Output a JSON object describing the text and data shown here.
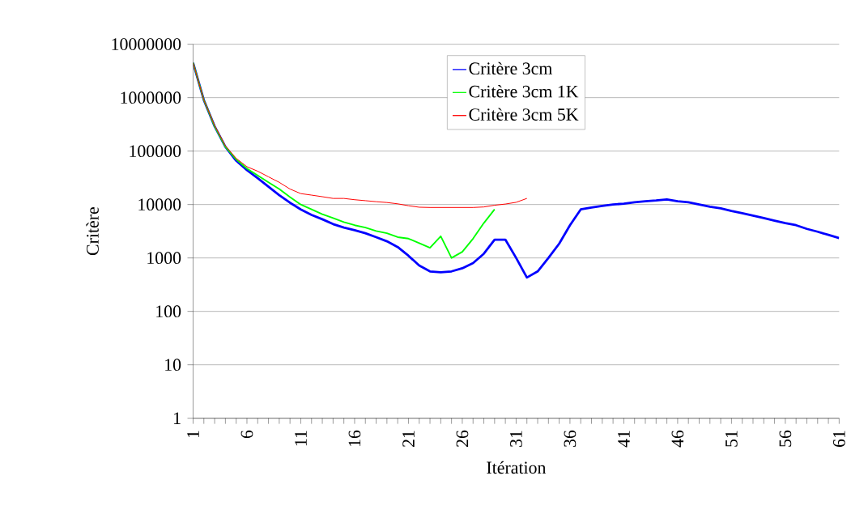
{
  "chart_data": {
    "type": "line",
    "xlabel": "Itération",
    "ylabel": "Critère",
    "categories": [
      "1",
      null,
      null,
      null,
      null,
      "6",
      null,
      null,
      null,
      null,
      "11",
      null,
      null,
      null,
      null,
      "16",
      null,
      null,
      null,
      null,
      "21",
      null,
      null,
      null,
      null,
      "26",
      null,
      null,
      null,
      null,
      "31",
      null,
      null,
      null,
      null,
      "36",
      null,
      null,
      null,
      null,
      "41",
      null,
      null,
      null,
      null,
      "46",
      null,
      null,
      null,
      null,
      "51",
      null,
      null,
      null,
      null,
      "56",
      null,
      null,
      null,
      null,
      "61"
    ],
    "series": [
      {
        "name": "Critère 3cm",
        "color": "#0000ff",
        "values": [
          4500000,
          900000,
          290000,
          120000,
          66000,
          44000,
          31000,
          21500,
          15000,
          10800,
          8100,
          6400,
          5300,
          4300,
          3700,
          3300,
          2900,
          2450,
          2050,
          1600,
          1100,
          720,
          560,
          540,
          560,
          640,
          800,
          1200,
          2200,
          2200,
          1000,
          430,
          560,
          1000,
          1850,
          4100,
          8100,
          8800,
          9400,
          10000,
          10400,
          11000,
          11500,
          11900,
          12500,
          11500,
          11000,
          10000,
          9100,
          8500,
          7600,
          6900,
          6200,
          5600,
          5000,
          4500,
          4100,
          3500,
          3100,
          2700,
          2350
        ]
      },
      {
        "name": "Critère 3cm 1K",
        "color": "#00ff00",
        "values": [
          4500000,
          900000,
          290000,
          120000,
          70000,
          47000,
          35000,
          26000,
          19500,
          13800,
          10000,
          8100,
          6600,
          5600,
          4700,
          4100,
          3700,
          3200,
          2900,
          2450,
          2300,
          1900,
          1550,
          2550,
          1000,
          1300,
          2300,
          4500,
          8100,
          null,
          null,
          null,
          null,
          null,
          null,
          null,
          null,
          null,
          null,
          null,
          null,
          null,
          null,
          null,
          null,
          null,
          null,
          null,
          null,
          null,
          null,
          null,
          null,
          null,
          null,
          null,
          null,
          null,
          null,
          null,
          null
        ]
      },
      {
        "name": "Critère 3cm 5K",
        "color": "#ff0000",
        "values": [
          4500000,
          900000,
          300000,
          125000,
          73000,
          51000,
          42000,
          33000,
          26000,
          19500,
          16000,
          15000,
          14000,
          13000,
          13000,
          12300,
          11800,
          11300,
          10900,
          10300,
          9500,
          8900,
          8800,
          8800,
          8800,
          8800,
          8800,
          9000,
          9700,
          10200,
          11000,
          13000,
          null,
          null,
          null,
          null,
          null,
          null,
          null,
          null,
          null,
          null,
          null,
          null,
          null,
          null,
          null,
          null,
          null,
          null,
          null,
          null,
          null,
          null,
          null,
          null,
          null,
          null,
          null,
          null,
          null
        ]
      }
    ],
    "log": "y",
    "ylim": [
      1,
      10000000
    ],
    "yticks": [
      1,
      10,
      100,
      1000,
      10000,
      100000,
      1000000,
      10000000
    ],
    "grid": "y",
    "legend": "top",
    "marker": "none",
    "line_style": "solid"
  }
}
